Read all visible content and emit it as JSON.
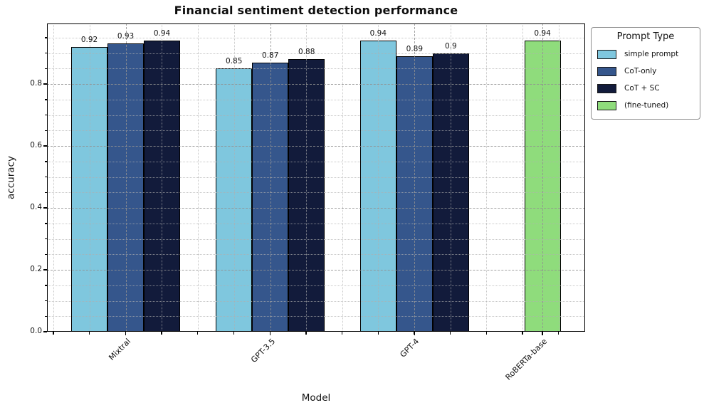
{
  "chart_data": {
    "type": "bar",
    "title": "Financial sentiment detection performance",
    "xlabel": "Model",
    "ylabel": "accuracy",
    "categories": [
      "Mixtral",
      "GPT-3.5",
      "GPT-4",
      "RoBERTa-base"
    ],
    "series": [
      {
        "name": "simple prompt",
        "color": "#7FC7DE",
        "values": [
          0.92,
          0.85,
          0.94,
          null
        ]
      },
      {
        "name": "CoT-only",
        "color": "#35568C",
        "values": [
          0.93,
          0.87,
          0.89,
          null
        ]
      },
      {
        "name": "CoT + SC",
        "color": "#121B3B",
        "values": [
          0.94,
          0.88,
          0.9,
          null
        ]
      },
      {
        "name": "(fine-tuned)",
        "color": "#8FDC7C",
        "values": [
          null,
          null,
          null,
          0.94
        ]
      }
    ],
    "bar_value_labels_shown": true,
    "yticks": [
      {
        "label": "0.0",
        "value": 0.0
      },
      {
        "label": "0.2",
        "value": 0.2
      },
      {
        "label": "0.4",
        "value": 0.4
      },
      {
        "label": "0.6",
        "value": 0.6
      },
      {
        "label": "0.8",
        "value": 0.8
      }
    ],
    "ylim": [
      0,
      0.995
    ],
    "legend": {
      "title": "Prompt Type",
      "position": "upper-right-outside"
    },
    "grid": {
      "major": "dashed-gray-both-axes",
      "minor": "dotted-light-gray-both-axes",
      "drawn_above_bars": true
    },
    "xticklabel_rotation_deg": 45
  }
}
